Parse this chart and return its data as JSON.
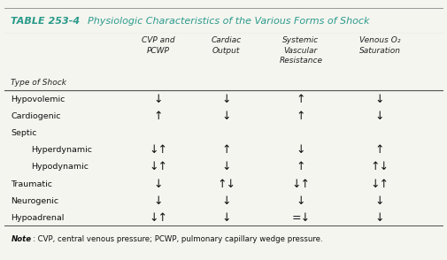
{
  "title_bold": "TABLE 253-4",
  "title_italic": "  Physiologic Characteristics of the Various Forms of Shock",
  "header_bg": "#c8e8e4",
  "table_bg": "#ede0de",
  "outer_bg": "#f5f5f0",
  "header_text_color": "#2a9a8a",
  "col_headers": [
    "CVP and\nPCWP",
    "Cardiac\nOutput",
    "Systemic\nVascular\nResistance",
    "Venous O₂\nSaturation"
  ],
  "row_label_header": "Type of Shock",
  "rows": [
    {
      "label": "Hypovolemic",
      "indent": false,
      "cvp": "↓",
      "co": "↓",
      "svr": "↑",
      "vo2": "↓"
    },
    {
      "label": "Cardiogenic",
      "indent": false,
      "cvp": "↑",
      "co": "↓",
      "svr": "↑",
      "vo2": "↓"
    },
    {
      "label": "Septic",
      "indent": false,
      "cvp": "",
      "co": "",
      "svr": "",
      "vo2": ""
    },
    {
      "label": "Hyperdynamic",
      "indent": true,
      "cvp": "↓↑",
      "co": "↑",
      "svr": "↓",
      "vo2": "↑"
    },
    {
      "label": "Hypodynamic",
      "indent": true,
      "cvp": "↓↑",
      "co": "↓",
      "svr": "↑",
      "vo2": "↑↓"
    },
    {
      "label": "Traumatic",
      "indent": false,
      "cvp": "↓",
      "co": "↑↓",
      "svr": "↓↑",
      "vo2": "↓↑"
    },
    {
      "label": "Neurogenic",
      "indent": false,
      "cvp": "↓",
      "co": "↓",
      "svr": "↓",
      "vo2": "↓"
    },
    {
      "label": "Hypoadrenal",
      "indent": false,
      "cvp": "↓↑",
      "co": "↓",
      "svr": "=↓",
      "vo2": "↓"
    }
  ],
  "note_italic": "Note",
  "note_rest": ": CVP, central venous pressure; PCWP, pulmonary capillary wedge pressure.",
  "figsize": [
    5.06,
    2.94
  ],
  "dpi": 100
}
